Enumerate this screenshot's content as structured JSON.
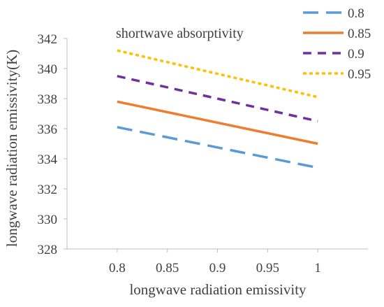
{
  "chart_data": {
    "type": "line",
    "xlabel": "longwave radiation emissivity",
    "ylabel": "longwave radiation emissivity(K)",
    "annotation": "shortwave absorptivity",
    "x": [
      0.8,
      1
    ],
    "x_tick_labels": [
      "0.8",
      "0.85",
      "0.9",
      "0.95",
      "1"
    ],
    "x_tick_values": [
      0.8,
      0.85,
      0.9,
      0.95,
      1.0
    ],
    "xlim": [
      0.75,
      1.05
    ],
    "y_tick_labels": [
      "328",
      "330",
      "332",
      "334",
      "336",
      "338",
      "340",
      "342"
    ],
    "y_tick_values": [
      328,
      330,
      332,
      334,
      336,
      338,
      340,
      342
    ],
    "ylim": [
      328,
      342
    ],
    "grid": false,
    "legend_position": "top-right",
    "series": [
      {
        "name": "0.8",
        "values": [
          336.1,
          333.4
        ],
        "color": "#5B9BD5",
        "dash": "long-dash"
      },
      {
        "name": "0.85",
        "values": [
          337.8,
          335.0
        ],
        "color": "#ED7D31",
        "dash": "solid"
      },
      {
        "name": "0.9",
        "values": [
          339.5,
          336.5
        ],
        "color": "#7030A0",
        "dash": "dash"
      },
      {
        "name": "0.95",
        "values": [
          341.2,
          338.1
        ],
        "color": "#FFC000",
        "dash": "dot"
      }
    ]
  }
}
